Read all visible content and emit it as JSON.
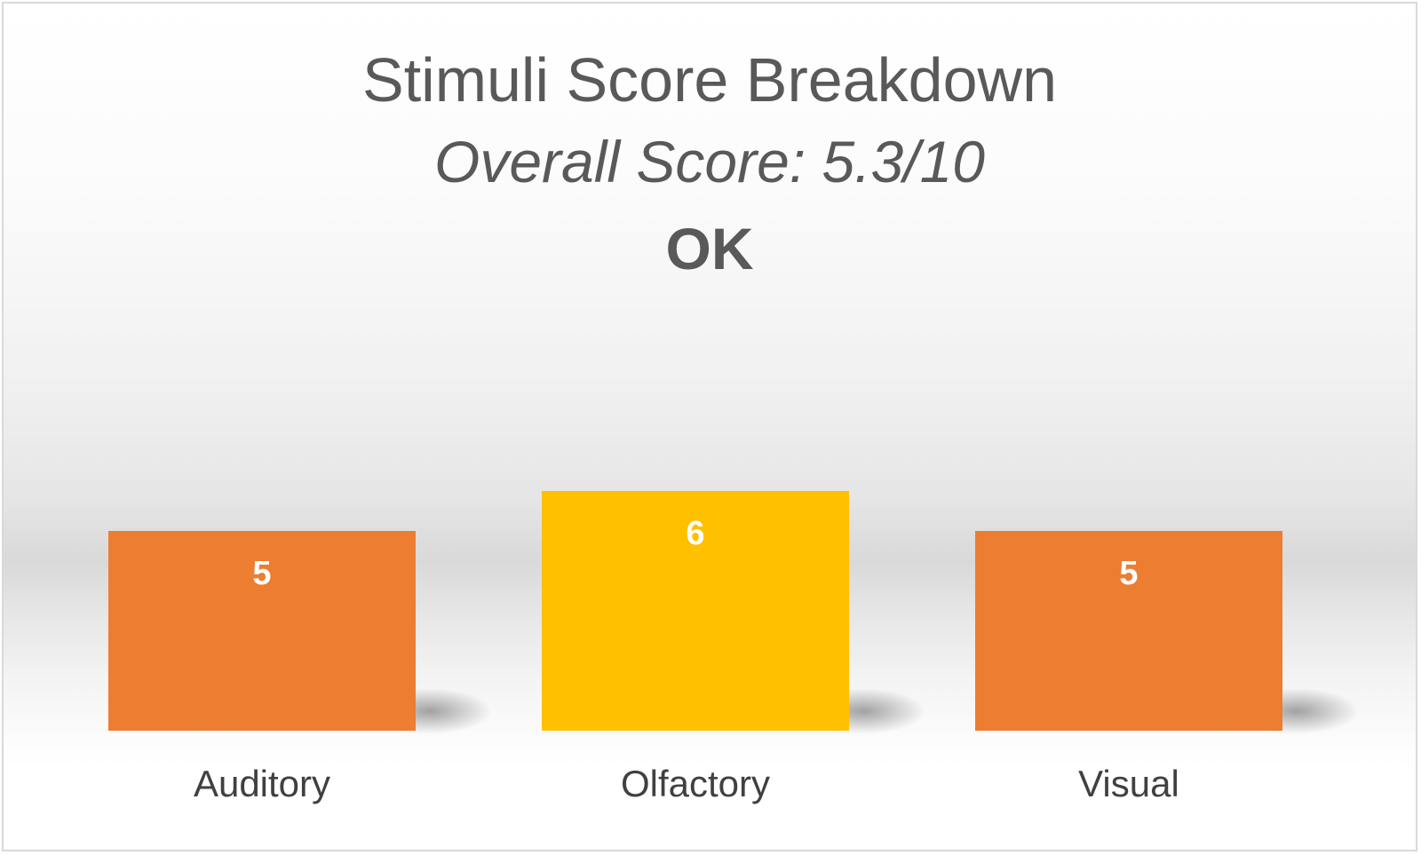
{
  "chart_data": {
    "type": "bar",
    "title": "Stimuli Score Breakdown",
    "subtitle": "Overall Score: 5.3/10",
    "rating": "OK",
    "categories": [
      "Auditory",
      "Olfactory",
      "Visual"
    ],
    "values": [
      5,
      6,
      5
    ],
    "data_labels": [
      "5",
      "6",
      "5"
    ],
    "bar_colors": [
      "#ED7D31",
      "#FFC000",
      "#ED7D31"
    ],
    "ylim": [
      0,
      10
    ],
    "grid": false,
    "legend": "none"
  },
  "colors": {
    "text": "#595959",
    "axis_text": "#404040",
    "data_label": "#FFFFFF"
  }
}
